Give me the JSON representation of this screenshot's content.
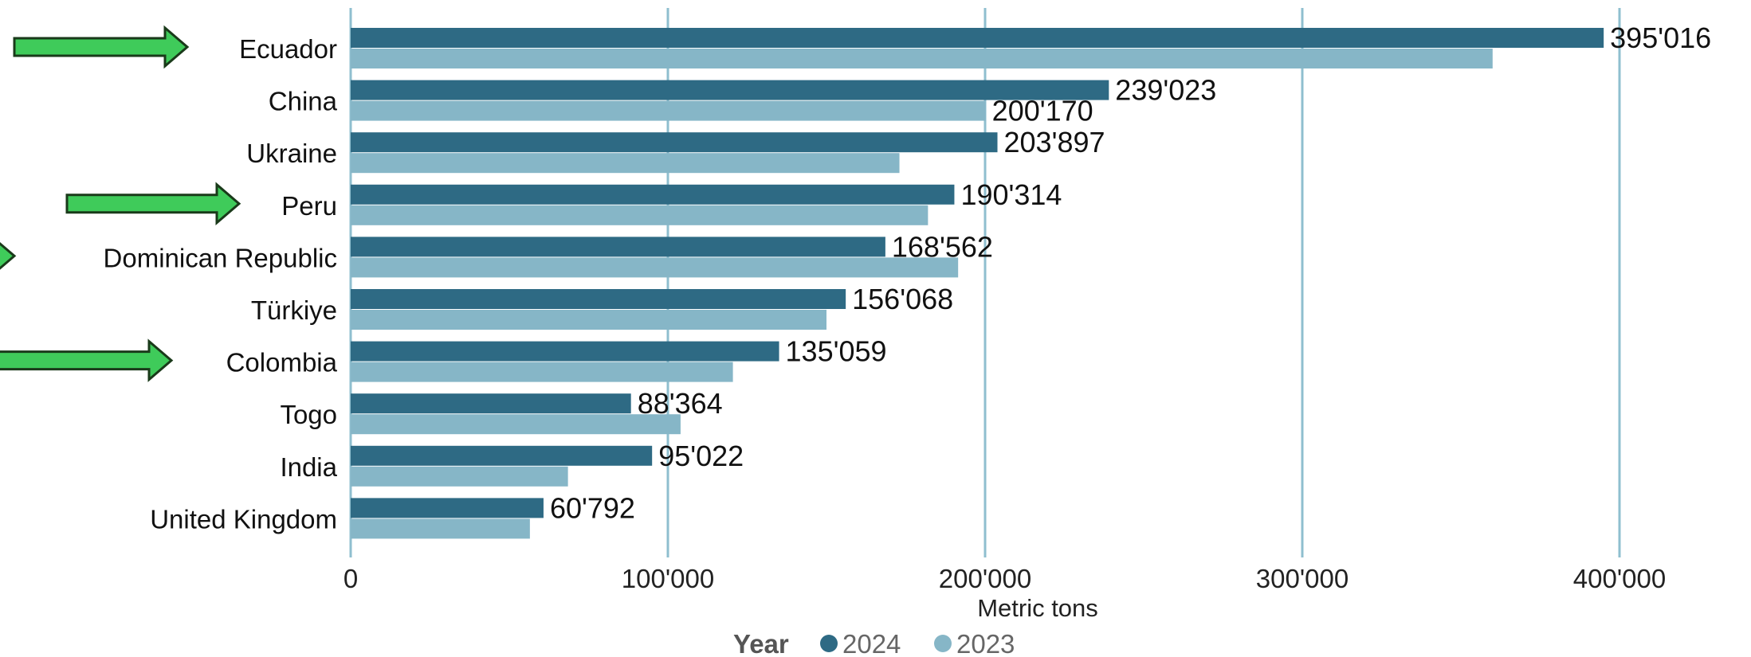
{
  "chart_data": {
    "type": "bar",
    "orientation": "horizontal",
    "categories": [
      "Ecuador",
      "China",
      "Ukraine",
      "Peru",
      "Dominican Republic",
      "Türkiye",
      "Colombia",
      "Togo",
      "India",
      "United Kingdom"
    ],
    "series": [
      {
        "name": "2024",
        "color": "#2e6a84",
        "values": [
          395016,
          239023,
          203897,
          190314,
          168562,
          156068,
          135059,
          88364,
          95022,
          60792
        ],
        "data_labels": [
          "395'016",
          "239'023",
          "203'897",
          "190'314",
          "168'562",
          "156'068",
          "135'059",
          "88'364",
          "95'022",
          "60'792"
        ]
      },
      {
        "name": "2023",
        "color": "#86b6c7",
        "values": [
          360000,
          200170,
          173000,
          182000,
          191500,
          150000,
          120500,
          104000,
          68500,
          56500
        ],
        "data_labels": [
          "",
          "200'170",
          "",
          "",
          "",
          "",
          "",
          "",
          "",
          ""
        ]
      }
    ],
    "xlabel": "Metric tons",
    "xlim": [
      0,
      400000
    ],
    "xticks": [
      0,
      100000,
      200000,
      300000,
      400000
    ],
    "xtick_labels": [
      "0",
      "100'000",
      "200'000",
      "300'000",
      "400'000"
    ],
    "grid": "vertical",
    "gridline_color": "#8fbfcf",
    "legend": {
      "title": "Year",
      "placement": "bottom-center",
      "entries": [
        "2024",
        "2023"
      ]
    },
    "annotations": {
      "arrow_color": "#3fcb5a",
      "arrow_outline": "#1a3a1a",
      "arrows_point_to": [
        "Ecuador",
        "Peru",
        "Dominican Republic",
        "Colombia"
      ]
    }
  }
}
